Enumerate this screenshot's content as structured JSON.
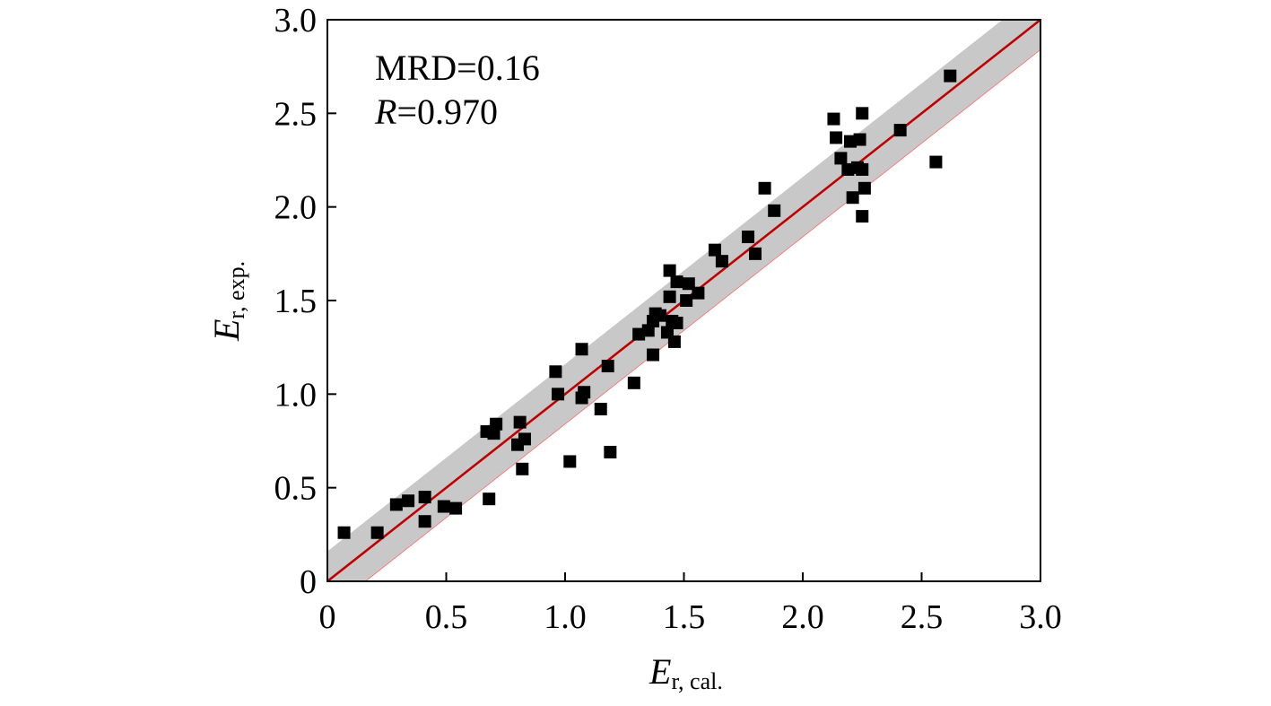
{
  "chart_data": {
    "type": "scatter",
    "xlabel": {
      "main": "E",
      "sub": "r, cal."
    },
    "ylabel": {
      "main": "E",
      "sub": "r, exp."
    },
    "xlim": [
      0,
      3.0
    ],
    "ylim": [
      0,
      3.0
    ],
    "xticks": [
      0,
      0.5,
      1.0,
      1.5,
      2.0,
      2.5,
      3.0
    ],
    "yticks": [
      0,
      0.5,
      1.0,
      1.5,
      2.0,
      2.5,
      3.0
    ],
    "xtick_labels": [
      "0",
      "0.5",
      "1.0",
      "1.5",
      "2.0",
      "2.5",
      "3.0"
    ],
    "ytick_labels": [
      "0",
      "0.5",
      "1.0",
      "1.5",
      "2.0",
      "2.5",
      "3.0"
    ],
    "grid": false,
    "annotations": {
      "mrd_label": "MRD=0.16",
      "r_symbol": "R",
      "r_value": "=0.970"
    },
    "fit_line": {
      "x": [
        0,
        3.0
      ],
      "y": [
        0,
        3.0
      ],
      "color": "#c00000"
    },
    "band": {
      "upper_offset": 0.16,
      "lower_offset": -0.16,
      "color": "#c8c8c8"
    },
    "series": [
      {
        "name": "data",
        "marker": "square",
        "color": "#000000",
        "points": [
          [
            0.07,
            0.26
          ],
          [
            0.21,
            0.26
          ],
          [
            0.29,
            0.41
          ],
          [
            0.34,
            0.43
          ],
          [
            0.41,
            0.45
          ],
          [
            0.41,
            0.32
          ],
          [
            0.49,
            0.4
          ],
          [
            0.54,
            0.39
          ],
          [
            0.67,
            0.8
          ],
          [
            0.68,
            0.44
          ],
          [
            0.7,
            0.79
          ],
          [
            0.71,
            0.84
          ],
          [
            0.8,
            0.73
          ],
          [
            0.81,
            0.85
          ],
          [
            0.82,
            0.6
          ],
          [
            0.83,
            0.76
          ],
          [
            0.96,
            1.12
          ],
          [
            0.97,
            1.0
          ],
          [
            1.02,
            0.64
          ],
          [
            1.07,
            0.98
          ],
          [
            1.07,
            1.24
          ],
          [
            1.08,
            1.01
          ],
          [
            1.15,
            0.92
          ],
          [
            1.18,
            1.15
          ],
          [
            1.19,
            0.69
          ],
          [
            1.29,
            1.06
          ],
          [
            1.31,
            1.32
          ],
          [
            1.35,
            1.34
          ],
          [
            1.37,
            1.39
          ],
          [
            1.38,
            1.43
          ],
          [
            1.37,
            1.21
          ],
          [
            1.4,
            1.42
          ],
          [
            1.43,
            1.33
          ],
          [
            1.44,
            1.52
          ],
          [
            1.44,
            1.66
          ],
          [
            1.45,
            1.39
          ],
          [
            1.46,
            1.28
          ],
          [
            1.47,
            1.38
          ],
          [
            1.47,
            1.6
          ],
          [
            1.51,
            1.5
          ],
          [
            1.52,
            1.59
          ],
          [
            1.56,
            1.54
          ],
          [
            1.63,
            1.77
          ],
          [
            1.66,
            1.71
          ],
          [
            1.77,
            1.84
          ],
          [
            1.8,
            1.75
          ],
          [
            1.84,
            2.1
          ],
          [
            1.88,
            1.98
          ],
          [
            2.13,
            2.47
          ],
          [
            2.14,
            2.37
          ],
          [
            2.16,
            2.26
          ],
          [
            2.19,
            2.2
          ],
          [
            2.2,
            2.35
          ],
          [
            2.21,
            2.05
          ],
          [
            2.23,
            2.21
          ],
          [
            2.24,
            2.36
          ],
          [
            2.25,
            2.5
          ],
          [
            2.25,
            2.2
          ],
          [
            2.25,
            1.95
          ],
          [
            2.26,
            2.1
          ],
          [
            2.41,
            2.41
          ],
          [
            2.56,
            2.24
          ],
          [
            2.62,
            2.7
          ]
        ]
      }
    ]
  }
}
